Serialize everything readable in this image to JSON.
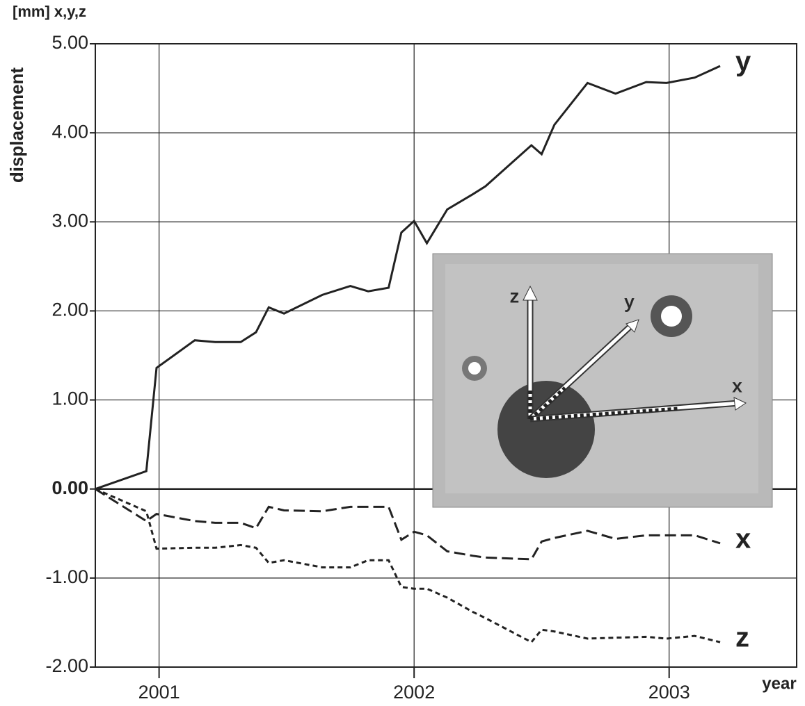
{
  "chart_data": {
    "type": "line",
    "title": "[mm] x,y,z",
    "y_label": "displacement",
    "x_label": "year",
    "x": [
      2000.75,
      2000.95,
      2000.99,
      2001.14,
      2001.22,
      2001.32,
      2001.38,
      2001.43,
      2001.49,
      2001.64,
      2001.75,
      2001.82,
      2001.9,
      2001.95,
      2002.0,
      2002.05,
      2002.13,
      2002.23,
      2002.28,
      2002.46,
      2002.5,
      2002.55,
      2002.68,
      2002.79,
      2002.91,
      2002.99,
      2003.1,
      2003.2
    ],
    "series": [
      {
        "name": "y",
        "color": "#222222",
        "line_style": "solid",
        "values": [
          0,
          0.2,
          1.36,
          1.67,
          1.65,
          1.65,
          1.76,
          2.04,
          1.97,
          2.18,
          2.28,
          2.22,
          2.26,
          2.88,
          3.01,
          2.76,
          3.14,
          3.31,
          3.4,
          3.86,
          3.76,
          4.09,
          4.56,
          4.44,
          4.57,
          4.56,
          4.62,
          4.75
        ]
      },
      {
        "name": "x",
        "color": "#222222",
        "line_style": "dashed",
        "values": [
          0,
          -0.36,
          -0.28,
          -0.36,
          -0.38,
          -0.38,
          -0.44,
          -0.2,
          -0.24,
          -0.25,
          -0.2,
          -0.2,
          -0.2,
          -0.57,
          -0.48,
          -0.52,
          -0.7,
          -0.75,
          -0.77,
          -0.79,
          -0.59,
          -0.55,
          -0.47,
          -0.56,
          -0.52,
          -0.52,
          -0.52,
          -0.61
        ]
      },
      {
        "name": "z",
        "color": "#222222",
        "line_style": "dotted",
        "values": [
          0,
          -0.25,
          -0.67,
          -0.66,
          -0.66,
          -0.63,
          -0.66,
          -0.83,
          -0.8,
          -0.88,
          -0.88,
          -0.8,
          -0.8,
          -1.1,
          -1.12,
          -1.12,
          -1.22,
          -1.38,
          -1.45,
          -1.72,
          -1.58,
          -1.6,
          -1.68,
          -1.67,
          -1.66,
          -1.68,
          -1.65,
          -1.72
        ]
      }
    ],
    "xlim": [
      2000.75,
      2003.5
    ],
    "xticks": [
      {
        "value": 2001,
        "label": "2001"
      },
      {
        "value": 2002,
        "label": "2002"
      },
      {
        "value": 2003,
        "label": "2003"
      }
    ],
    "ylim": [
      -2,
      5
    ],
    "yticks": [
      {
        "value": -2,
        "label": "-2.00"
      },
      {
        "value": -1,
        "label": "-1.00"
      },
      {
        "value": 0,
        "label": "0.00"
      },
      {
        "value": 1,
        "label": "1.00"
      },
      {
        "value": 2,
        "label": "2.00"
      },
      {
        "value": 3,
        "label": "3.00"
      },
      {
        "value": 4,
        "label": "4.00"
      },
      {
        "value": 5,
        "label": "5.00"
      }
    ],
    "grid": true,
    "inset": {
      "axis_labels": [
        "z",
        "y",
        "x"
      ]
    }
  }
}
